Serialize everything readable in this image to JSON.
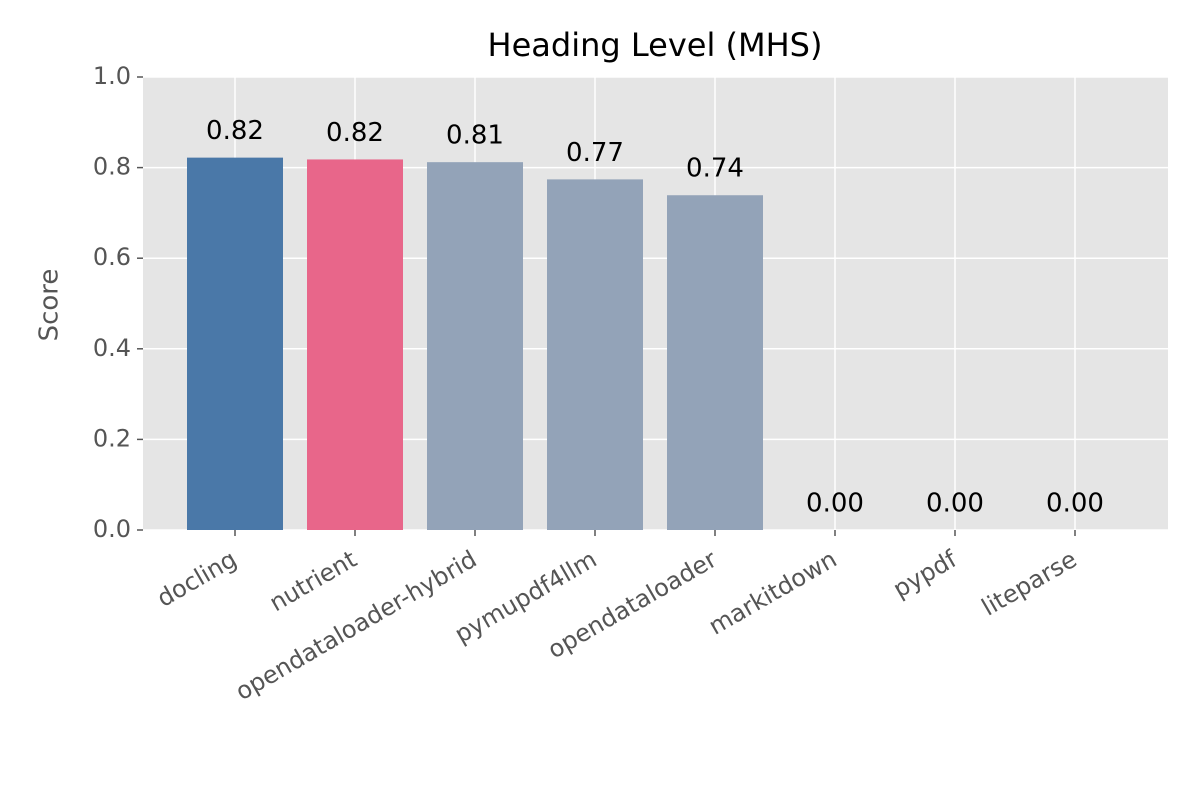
{
  "chart_data": {
    "type": "bar",
    "title": "Heading Level (MHS)",
    "y_label": "Score",
    "categories": [
      "docling",
      "nutrient",
      "opendataloader-hybrid",
      "pymupdf4llm",
      "opendataloader",
      "markitdown",
      "pypdf",
      "liteparse"
    ],
    "values": [
      0.822,
      0.818,
      0.812,
      0.774,
      0.739,
      0,
      0,
      0
    ],
    "value_labels": [
      "0.82",
      "0.82",
      "0.81",
      "0.77",
      "0.74",
      "0.00",
      "0.00",
      "0.00"
    ],
    "colors": [
      "#4a78a8",
      "#e8668a",
      "#93a3b8",
      "#93a3b8",
      "#93a3b8",
      "#93a3b8",
      "#93a3b8",
      "#93a3b8"
    ],
    "ylim": [
      0,
      1
    ],
    "yticks": [
      {
        "value": 0,
        "label": "0.0"
      },
      0.2,
      0.4,
      0.6,
      0.8,
      {
        "value": 1,
        "label": "1.0"
      }
    ],
    "grid": true
  }
}
